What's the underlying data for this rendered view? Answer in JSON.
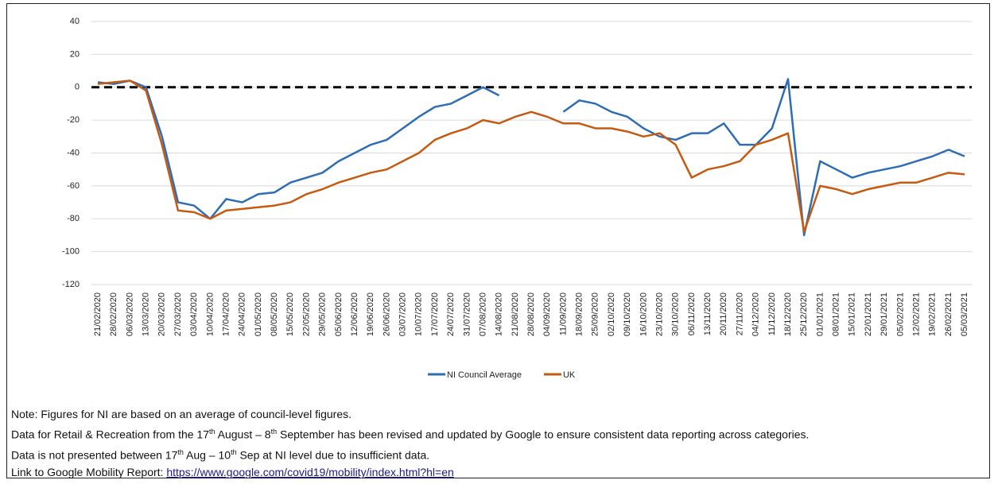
{
  "chart_data": {
    "type": "line",
    "categories": [
      "21/02/2020",
      "28/02/2020",
      "06/03/2020",
      "13/03/2020",
      "20/03/2020",
      "27/03/2020",
      "03/04/2020",
      "10/04/2020",
      "17/04/2020",
      "24/04/2020",
      "01/05/2020",
      "08/05/2020",
      "15/05/2020",
      "22/05/2020",
      "29/05/2020",
      "05/06/2020",
      "12/06/2020",
      "19/06/2020",
      "26/06/2020",
      "03/07/2020",
      "10/07/2020",
      "17/07/2020",
      "24/07/2020",
      "31/07/2020",
      "07/08/2020",
      "14/08/2020",
      "21/08/2020",
      "28/08/2020",
      "04/09/2020",
      "11/09/2020",
      "18/09/2020",
      "25/09/2020",
      "02/10/2020",
      "09/10/2020",
      "16/10/2020",
      "23/10/2020",
      "30/10/2020",
      "06/11/2020",
      "13/11/2020",
      "20/11/2020",
      "27/11/2020",
      "04/12/2020",
      "11/12/2020",
      "18/12/2020",
      "25/12/2020",
      "01/01/2021",
      "08/01/2021",
      "15/01/2021",
      "22/01/2021",
      "29/01/2021",
      "05/02/2021",
      "12/02/2021",
      "19/02/2021",
      "26/02/2021",
      "05/03/2021"
    ],
    "series": [
      {
        "name": "NI Council Average",
        "color": "#2e6db3",
        "values": [
          3,
          2,
          4,
          0,
          -30,
          -70,
          -72,
          -80,
          -68,
          -70,
          -65,
          -64,
          -58,
          -55,
          -52,
          -45,
          -40,
          -35,
          -32,
          -25,
          -18,
          -12,
          -10,
          -5,
          0,
          -5,
          null,
          null,
          null,
          -15,
          -8,
          -10,
          -15,
          -18,
          -25,
          -30,
          -32,
          -28,
          -28,
          -22,
          -35,
          -35,
          -25,
          5,
          -90,
          -45,
          -50,
          -55,
          -52,
          -50,
          -48,
          -45,
          -42,
          -38,
          -42
        ]
      },
      {
        "name": "UK",
        "color": "#c55a11",
        "values": [
          2,
          3,
          4,
          -2,
          -35,
          -75,
          -76,
          -80,
          -75,
          -74,
          -73,
          -72,
          -70,
          -65,
          -62,
          -58,
          -55,
          -52,
          -50,
          -45,
          -40,
          -32,
          -28,
          -25,
          -20,
          -22,
          -18,
          -15,
          -18,
          -22,
          -22,
          -25,
          -25,
          -27,
          -30,
          -28,
          -35,
          -55,
          -50,
          -48,
          -45,
          -35,
          -32,
          -28,
          -88,
          -60,
          -62,
          -65,
          -62,
          -60,
          -58,
          -58,
          -55,
          -52,
          -53
        ]
      }
    ],
    "ylim": [
      -120,
      40
    ],
    "yticks": [
      -120,
      -100,
      -80,
      -60,
      -40,
      -20,
      0,
      20,
      40
    ],
    "grid": true,
    "reference_line": 0,
    "legend": "bottom"
  },
  "notes": [
    [
      "Note: Figures for NI are based on an average of council-level figures."
    ],
    [
      "Data for Retail & Recreation from the 17",
      "th",
      " August – 8",
      "th",
      " September has been revised and updated by Google to ensure consistent data reporting across categories."
    ],
    [
      "Data is not presented between 17",
      "th",
      " Aug – 10",
      "th",
      " Sep at NI level due to insufficient data."
    ]
  ],
  "link": {
    "label": "Link to Google Mobility Report: ",
    "url": "https://www.google.com/covid19/mobility/index.html?hl=en"
  }
}
